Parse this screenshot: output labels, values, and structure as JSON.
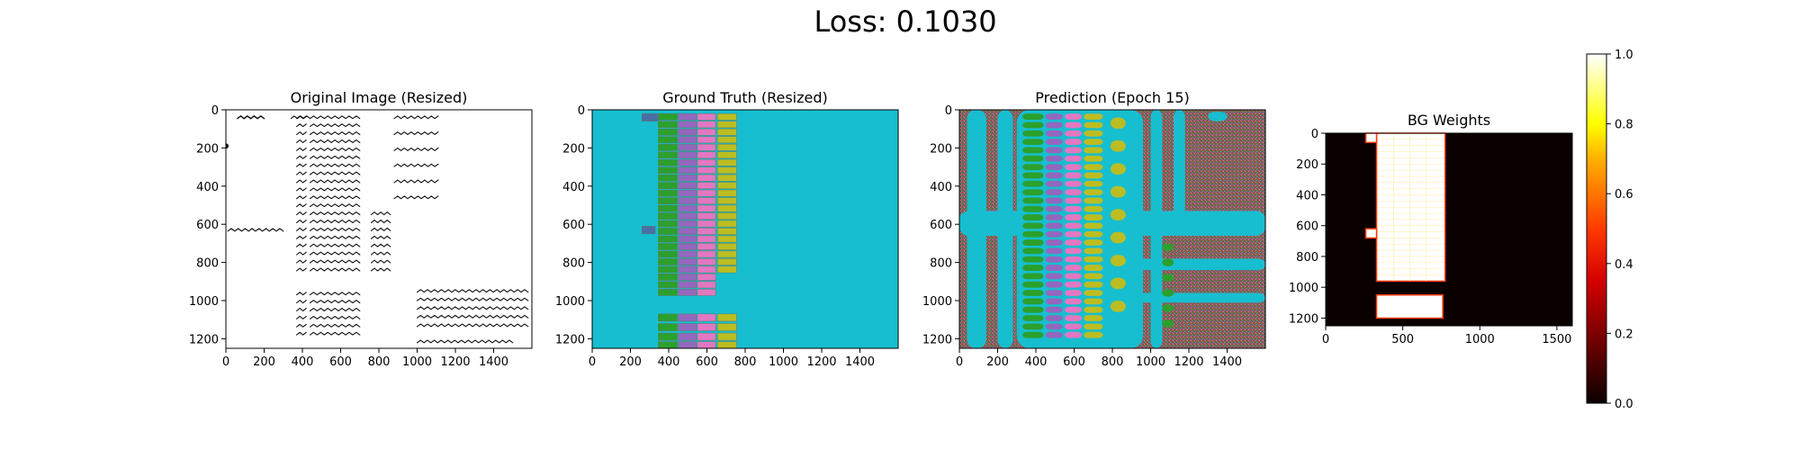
{
  "figure": {
    "suptitle": "Loss: 0.1030"
  },
  "chart_data": [
    {
      "type": "image",
      "title": "Original Image (Resized)",
      "xlim": [
        0,
        1600
      ],
      "ylim": [
        1250,
        0
      ],
      "xticks": [
        0,
        200,
        400,
        600,
        800,
        1000,
        1200,
        1400
      ],
      "yticks": [
        0,
        200,
        400,
        600,
        800,
        1000,
        1200
      ],
      "content": "handwritten ledger page"
    },
    {
      "type": "image",
      "title": "Ground Truth (Resized)",
      "xlim": [
        0,
        1600
      ],
      "ylim": [
        1250,
        0
      ],
      "xticks": [
        0,
        200,
        400,
        600,
        800,
        1000,
        1200,
        1400
      ],
      "yticks": [
        0,
        200,
        400,
        600,
        800,
        1000,
        1200
      ],
      "background_color": "#17becf",
      "column_colors": [
        "#2ca02c",
        "#9467bd",
        "#e377c2",
        "#bcbd22"
      ],
      "accent_color": "#4a6fa5"
    },
    {
      "type": "image",
      "title": "Prediction (Epoch 15)",
      "xlim": [
        0,
        1600
      ],
      "ylim": [
        1250,
        0
      ],
      "xticks": [
        0,
        200,
        400,
        600,
        800,
        1000,
        1200,
        1400
      ],
      "yticks": [
        0,
        200,
        400,
        600,
        800,
        1000,
        1200
      ],
      "colors": [
        "#17becf",
        "#8c564b",
        "#2ca02c",
        "#9467bd",
        "#e377c2",
        "#bcbd22"
      ]
    },
    {
      "type": "heatmap",
      "title": "BG Weights",
      "xlim": [
        0,
        1600
      ],
      "ylim": [
        1250,
        0
      ],
      "xticks": [
        0,
        500,
        1000,
        1500
      ],
      "yticks": [
        0,
        200,
        400,
        600,
        800,
        1000,
        1200
      ],
      "colormap": "hot",
      "colorbar": {
        "range": [
          0.0,
          1.0
        ],
        "ticks": [
          "0.0",
          "0.2",
          "0.4",
          "0.6",
          "0.8",
          "1.0"
        ]
      }
    }
  ]
}
